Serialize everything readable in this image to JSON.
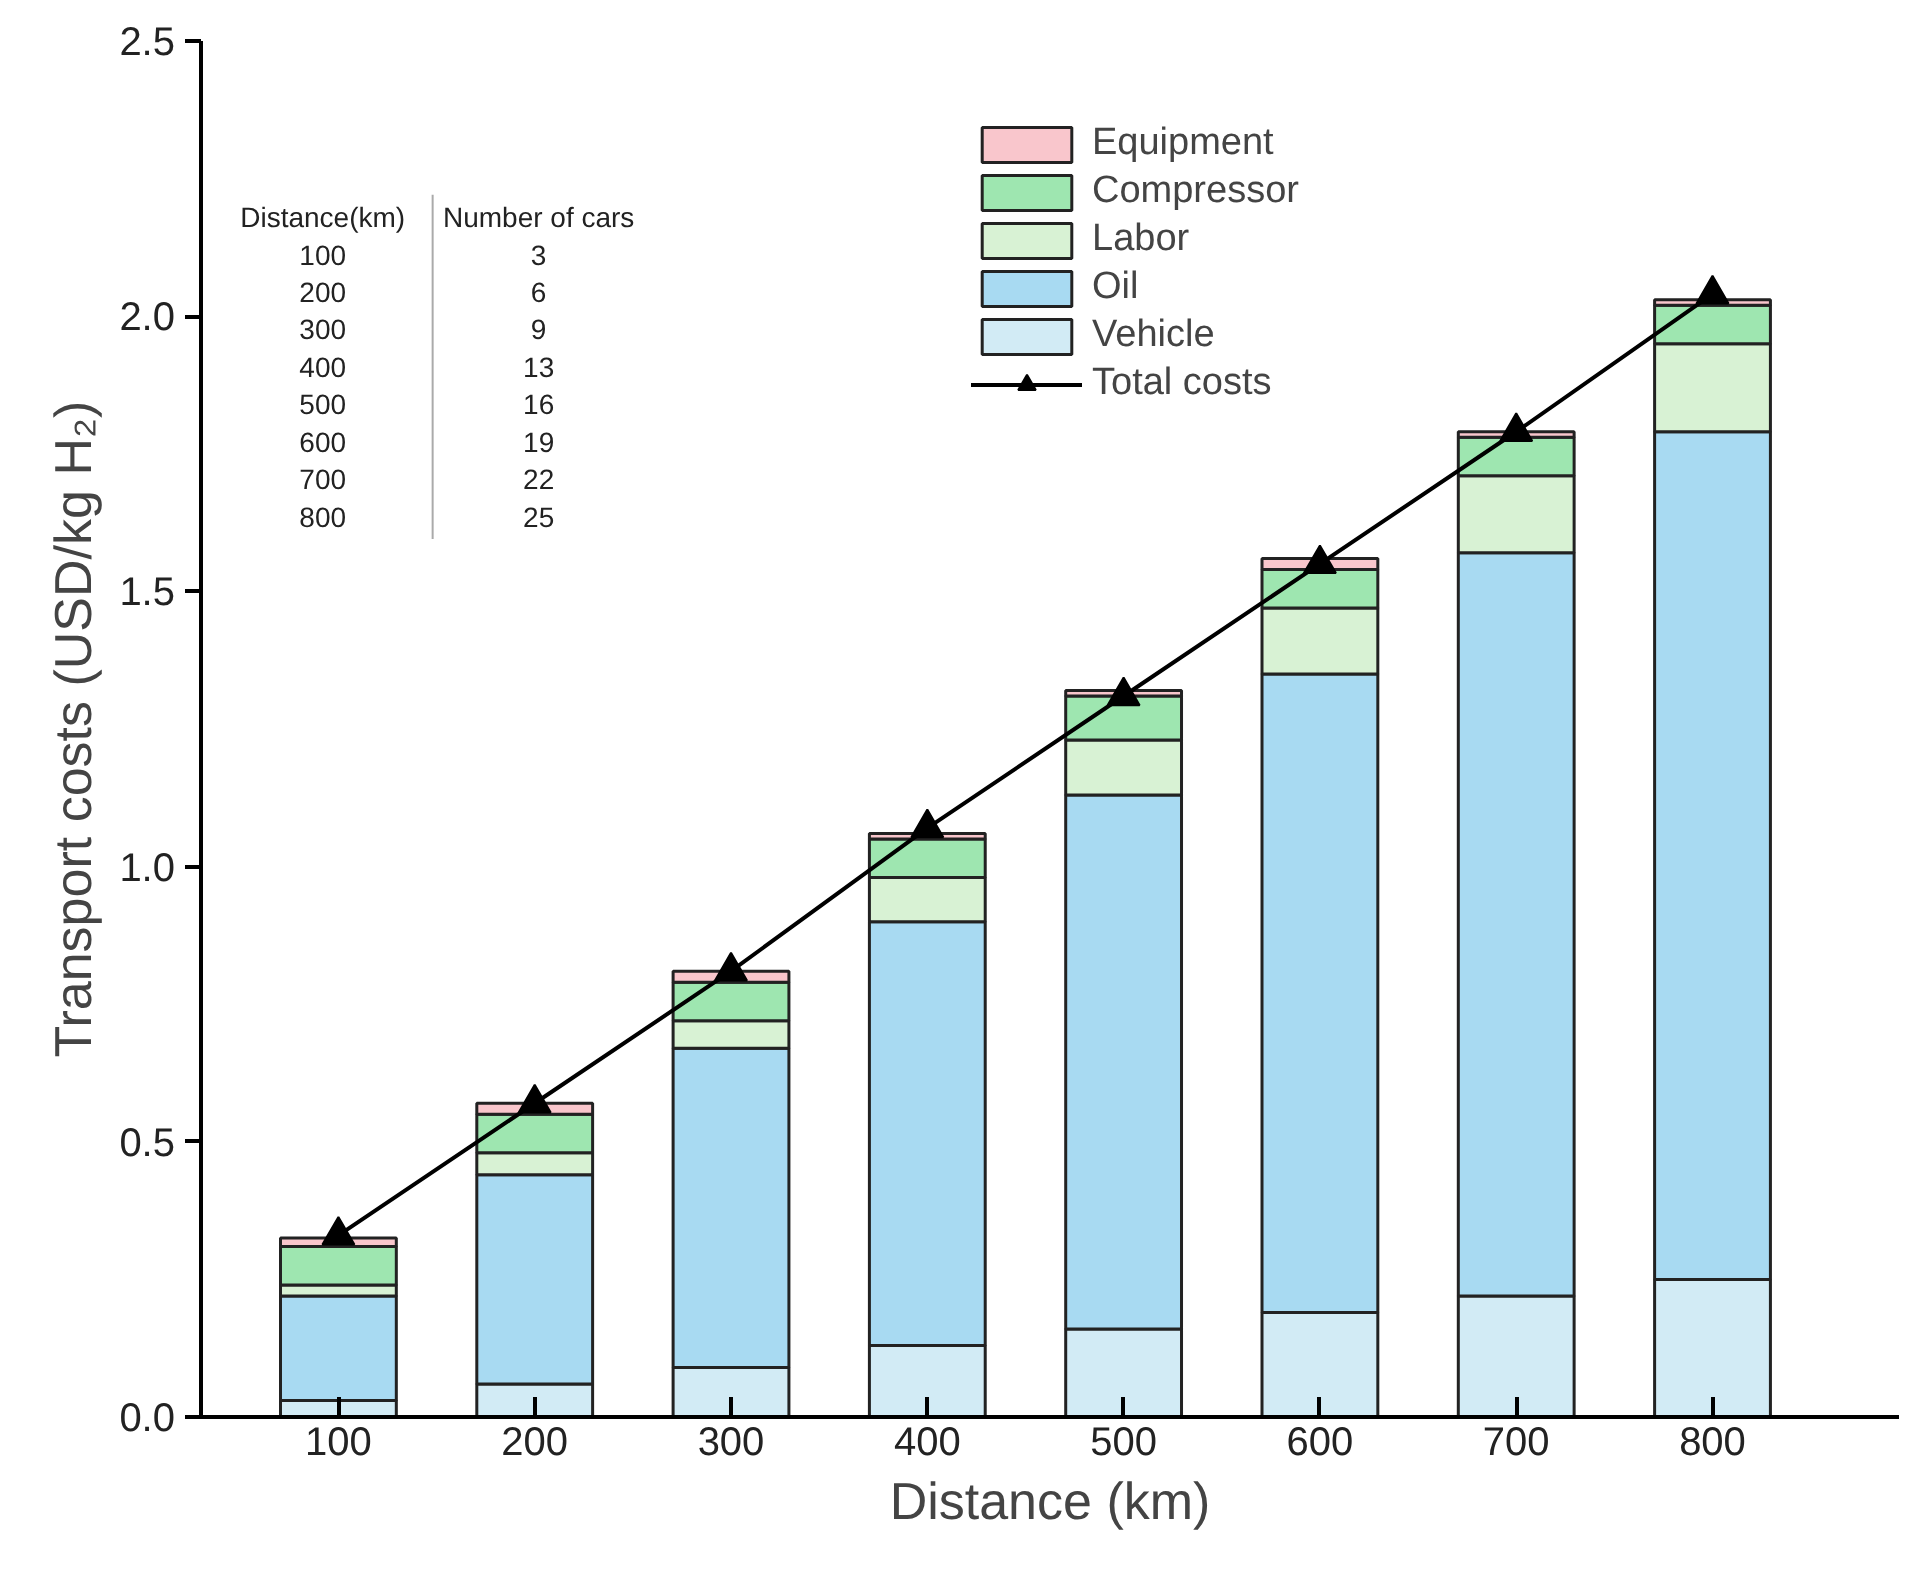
{
  "chart_data": {
    "type": "bar",
    "stacked": true,
    "xlabel": "Distance (km)",
    "ylabel": "Transport costs (USD/kg H₂)",
    "categories": [
      "100",
      "200",
      "300",
      "400",
      "500",
      "600",
      "700",
      "800"
    ],
    "series": [
      {
        "name": "Vehicle",
        "color": "#d2ebf5",
        "values": [
          0.03,
          0.06,
          0.09,
          0.13,
          0.16,
          0.19,
          0.22,
          0.25
        ]
      },
      {
        "name": "Oil",
        "color": "#a8daf2",
        "values": [
          0.19,
          0.38,
          0.58,
          0.77,
          0.97,
          1.16,
          1.35,
          1.54
        ]
      },
      {
        "name": "Labor",
        "color": "#d8f2d4",
        "values": [
          0.02,
          0.04,
          0.05,
          0.08,
          0.1,
          0.12,
          0.14,
          0.16
        ]
      },
      {
        "name": "Compressor",
        "color": "#9ee6b0",
        "values": [
          0.07,
          0.07,
          0.07,
          0.07,
          0.08,
          0.07,
          0.07,
          0.07
        ]
      },
      {
        "name": "Equipment",
        "color": "#f9c6cc",
        "values": [
          0.015,
          0.02,
          0.02,
          0.01,
          0.01,
          0.02,
          0.01,
          0.01
        ]
      },
      {
        "name": "Total costs",
        "type": "line",
        "color": "#000000",
        "marker": "triangle",
        "values": [
          0.33,
          0.57,
          0.81,
          1.07,
          1.31,
          1.55,
          1.79,
          2.04
        ]
      }
    ],
    "ylim": [
      0,
      2.5
    ],
    "yticks": [
      {
        "value": 0,
        "label": "0.0"
      },
      {
        "value": 0.5,
        "label": "0.5"
      },
      {
        "value": 1,
        "label": "1.0"
      },
      {
        "value": 1.5,
        "label": "1.5"
      },
      {
        "value": 2,
        "label": "2.0"
      },
      {
        "value": 2.5,
        "label": "2.5"
      }
    ],
    "legend": "top right",
    "grid": false,
    "annotations": [
      "Distance(km)",
      "Number of cars",
      "100",
      "3",
      "200",
      "6",
      "300",
      "9",
      "400",
      "13",
      "500",
      "16",
      "600",
      "19",
      "700",
      "22",
      "800",
      "25"
    ]
  }
}
